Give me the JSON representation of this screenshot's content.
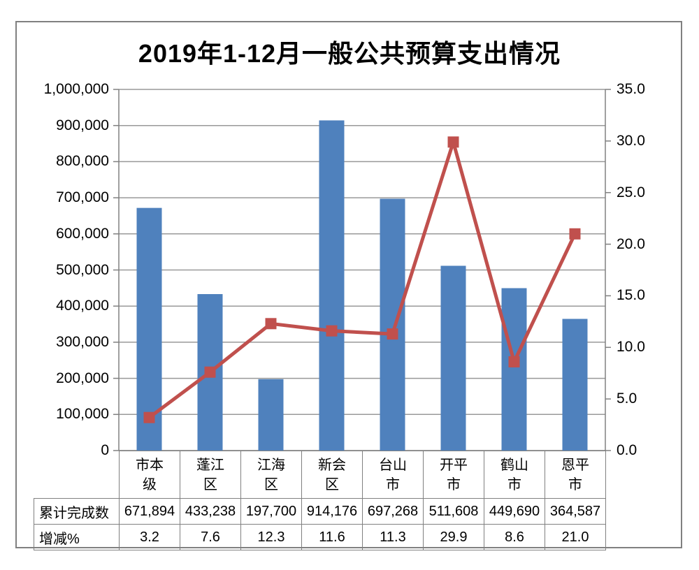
{
  "title": "2019年1-12月一般公共预算支出情况",
  "chart_data": {
    "type": "combo-bar-line",
    "title": "2019年1-12月一般公共预算支出情况",
    "categories": [
      "市本级",
      "蓬江区",
      "江海区",
      "新会区",
      "台山市",
      "开平市",
      "鹤山市",
      "恩平市"
    ],
    "series": [
      {
        "name": "累计完成数",
        "type": "bar",
        "y_axis": "left",
        "color": "#4F81BD",
        "values": [
          671894,
          433238,
          197700,
          914176,
          697268,
          511608,
          449690,
          364587
        ]
      },
      {
        "name": "增减%",
        "type": "line",
        "marker": "square",
        "y_axis": "right",
        "color": "#C0504D",
        "values": [
          3.2,
          7.6,
          12.3,
          11.6,
          11.3,
          29.9,
          8.6,
          21.0
        ]
      }
    ],
    "left_axis": {
      "min": 0,
      "max": 1000000,
      "step": 100000,
      "labels": [
        "1,000,000",
        "900,000",
        "800,000",
        "700,000",
        "600,000",
        "500,000",
        "400,000",
        "300,000",
        "200,000",
        "100,000",
        "0"
      ]
    },
    "right_axis": {
      "min": 0,
      "max": 35,
      "step": 5,
      "labels": [
        "35.0",
        "30.0",
        "25.0",
        "20.0",
        "15.0",
        "10.0",
        "5.0",
        "0.0"
      ]
    },
    "grid": true,
    "legend_position": "none"
  },
  "data_table": {
    "row_headers": [
      "累计完成数",
      "增减%"
    ],
    "rows": [
      [
        "671,894",
        "433,238",
        "197,700",
        "914,176",
        "697,268",
        "511,608",
        "449,690",
        "364,587"
      ],
      [
        "3.2",
        "7.6",
        "12.3",
        "11.6",
        "11.3",
        "29.9",
        "8.6",
        "21.0"
      ]
    ]
  },
  "colors": {
    "bar": "#4F81BD",
    "line": "#C0504D",
    "grid": "#999999",
    "axis": "#808080",
    "border": "#808080",
    "text": "#000000"
  }
}
